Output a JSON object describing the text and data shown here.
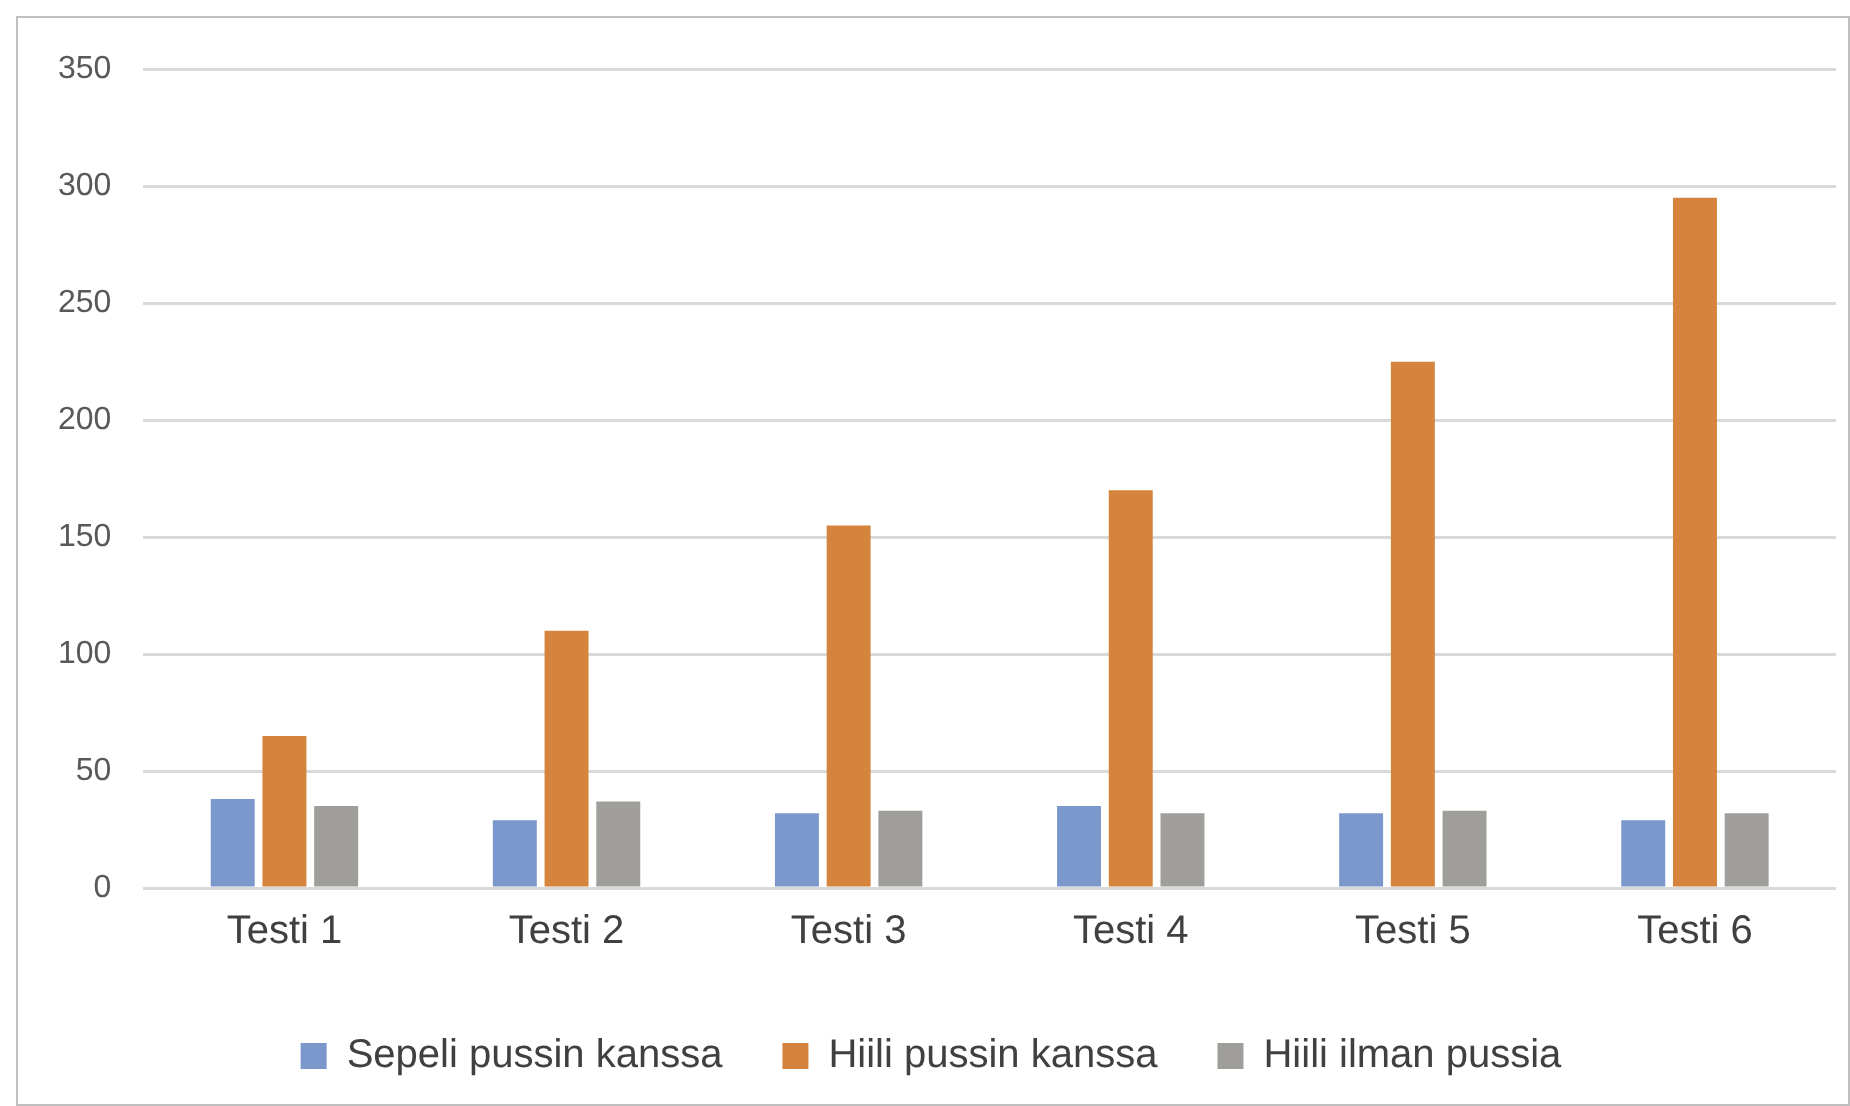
{
  "chart_data": {
    "type": "bar",
    "categories": [
      "Testi 1",
      "Testi 2",
      "Testi 3",
      "Testi 4",
      "Testi 5",
      "Testi 6"
    ],
    "series": [
      {
        "name": "Sepeli pussin kanssa",
        "color": "#7b98cc",
        "values": [
          38,
          29,
          32,
          35,
          32,
          29
        ]
      },
      {
        "name": "Hiili pussin kanssa",
        "color": "#d4843c",
        "values": [
          65,
          110,
          155,
          170,
          225,
          295
        ]
      },
      {
        "name": "Hiili ilman pussia",
        "color": "#a09e9a",
        "values": [
          35,
          37,
          33,
          32,
          33,
          32
        ]
      }
    ],
    "ylim": [
      0,
      350
    ],
    "yticks": [
      0,
      50,
      100,
      150,
      200,
      250,
      300,
      350
    ],
    "grid": "y",
    "legend": "bottom"
  }
}
